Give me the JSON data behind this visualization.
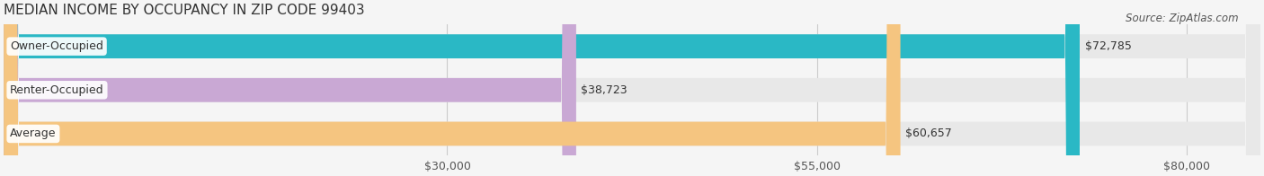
{
  "title": "MEDIAN INCOME BY OCCUPANCY IN ZIP CODE 99403",
  "source": "Source: ZipAtlas.com",
  "categories": [
    "Owner-Occupied",
    "Renter-Occupied",
    "Average"
  ],
  "values": [
    72785,
    38723,
    60657
  ],
  "bar_colors": [
    "#2ab8c5",
    "#c9a8d4",
    "#f5c580"
  ],
  "bar_labels": [
    "$72,785",
    "$38,723",
    "$60,657"
  ],
  "x_ticks": [
    30000,
    55000,
    80000
  ],
  "x_tick_labels": [
    "$30,000",
    "$55,000",
    "$80,000"
  ],
  "xlim": [
    0,
    85000
  ],
  "background_color": "#f5f5f5",
  "bar_background_color": "#e8e8e8",
  "title_fontsize": 11,
  "source_fontsize": 8.5,
  "label_fontsize": 9,
  "tick_fontsize": 9
}
